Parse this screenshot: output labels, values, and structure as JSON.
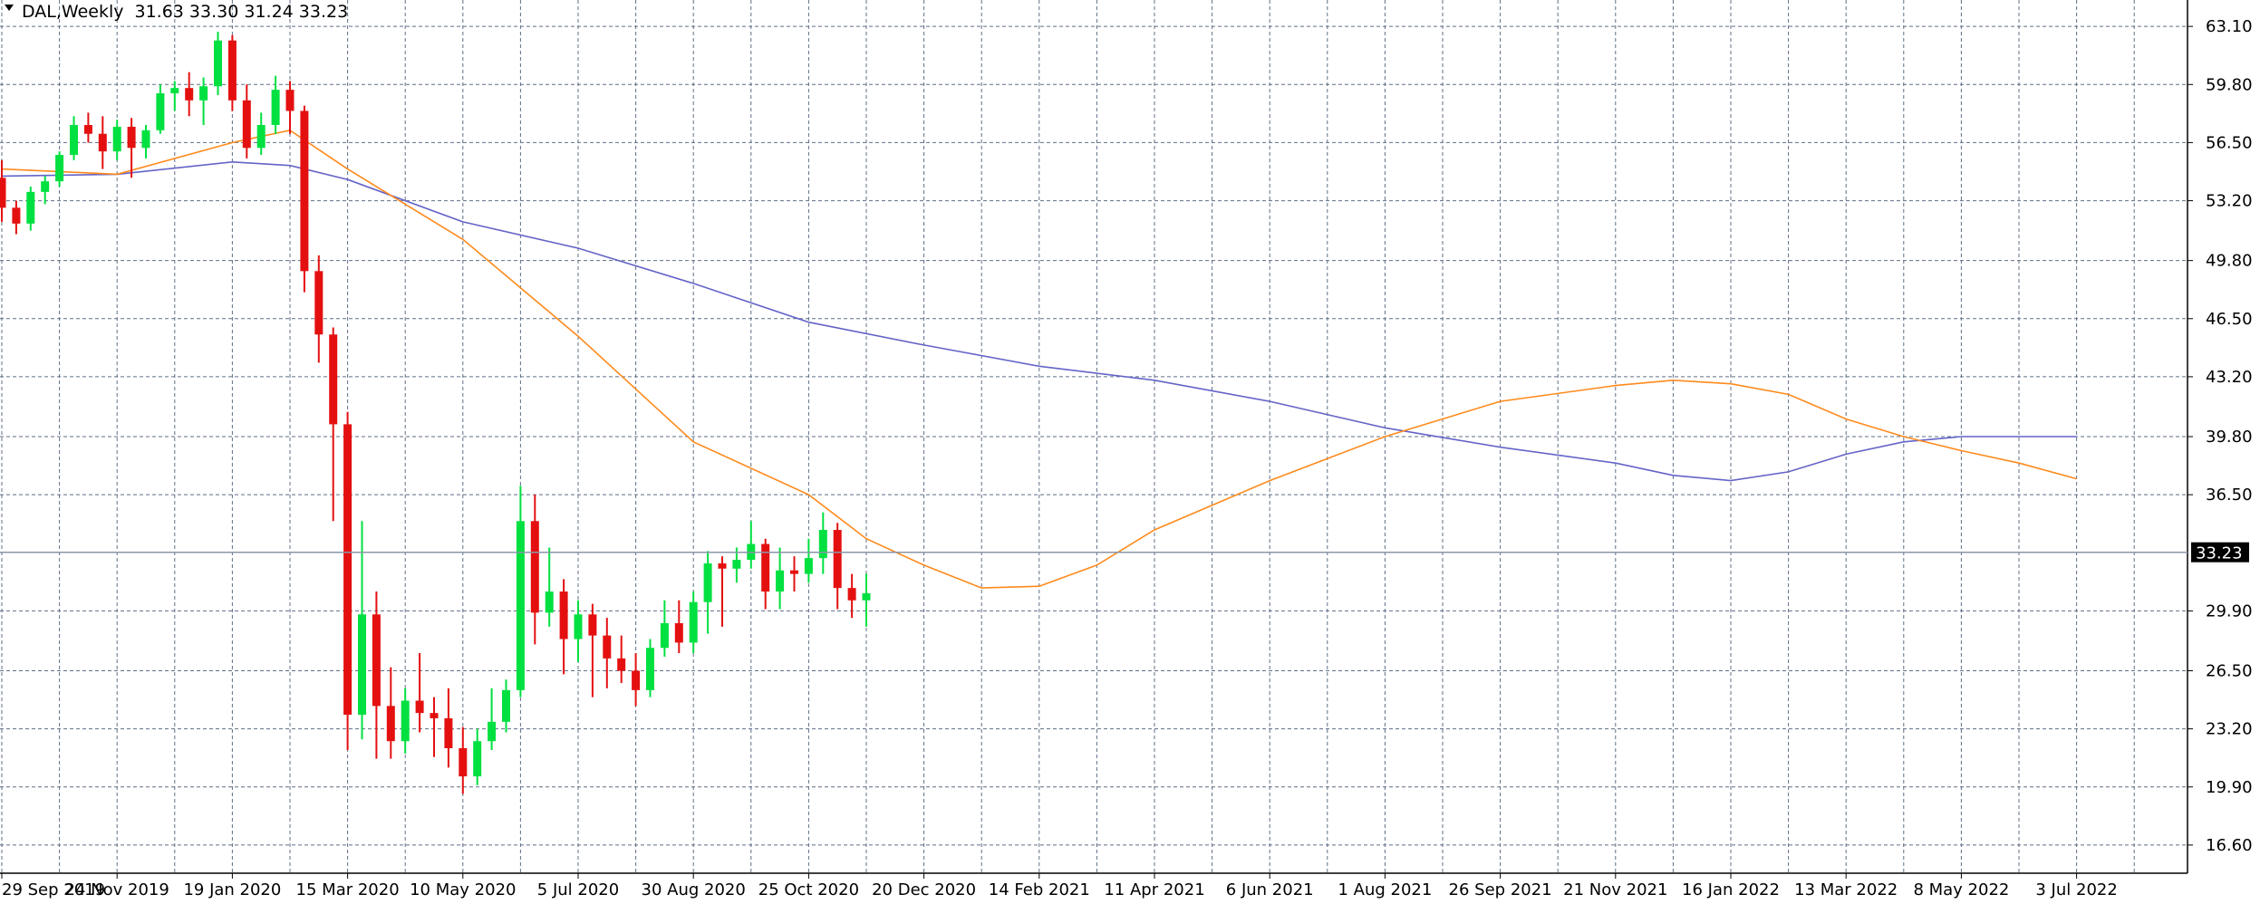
{
  "header": {
    "symbol_label": "DAL,Weekly",
    "ohlc": "31.63 33.30 31.24 33.23"
  },
  "colors": {
    "grid": "#5f6f86",
    "bull": "#00e040",
    "bear": "#e41010",
    "ma_fast": "#ff8a1c",
    "ma_slow": "#6464c8",
    "axis": "#000000",
    "price_line": "#8a96a8",
    "price_tag_bg": "#000000"
  },
  "chart_data": {
    "type": "candlestick",
    "ylim": [
      15.0,
      64.6
    ],
    "y_ticks": [
      "63.10",
      "59.80",
      "56.50",
      "53.20",
      "49.80",
      "46.50",
      "43.20",
      "39.80",
      "36.50",
      "33.23",
      "29.90",
      "26.50",
      "23.20",
      "19.90",
      "16.60"
    ],
    "y_tick_values": [
      63.1,
      59.8,
      56.5,
      53.2,
      49.8,
      46.5,
      43.2,
      39.8,
      36.5,
      33.23,
      29.9,
      26.5,
      23.2,
      19.9,
      16.6
    ],
    "x_tick_labels": [
      "29 Sep 2019",
      "24 Nov 2019",
      "19 Jan 2020",
      "15 Mar 2020",
      "10 May 2020",
      "5 Jul 2020",
      "30 Aug 2020",
      "25 Oct 2020",
      "20 Dec 2020",
      "14 Feb 2021",
      "11 Apr 2021",
      "6 Jun 2021",
      "1 Aug 2021",
      "26 Sep 2021",
      "21 Nov 2021",
      "16 Jan 2022",
      "13 Mar 2022",
      "8 May 2022",
      "3 Jul 2022"
    ],
    "x_tick_index": [
      0,
      8,
      16,
      24,
      32,
      40,
      48,
      56,
      64,
      72,
      80,
      88,
      96,
      104,
      112,
      120,
      128,
      136,
      144
    ],
    "current_price": "33.23",
    "current_price_value": 33.23,
    "candles": [
      [
        54.5,
        55.5,
        52.0,
        52.8
      ],
      [
        52.8,
        53.2,
        51.3,
        51.9
      ],
      [
        51.9,
        54.0,
        51.5,
        53.7
      ],
      [
        53.7,
        54.6,
        53.0,
        54.3
      ],
      [
        54.3,
        56.0,
        54.0,
        55.8
      ],
      [
        55.8,
        58.0,
        55.5,
        57.5
      ],
      [
        57.5,
        58.2,
        56.5,
        57.0
      ],
      [
        57.0,
        58.0,
        55.0,
        56.0
      ],
      [
        56.0,
        57.8,
        55.5,
        57.4
      ],
      [
        57.4,
        57.9,
        54.5,
        56.2
      ],
      [
        56.2,
        57.5,
        55.6,
        57.2
      ],
      [
        57.2,
        59.8,
        57.0,
        59.3
      ],
      [
        59.3,
        60.0,
        58.3,
        59.6
      ],
      [
        59.6,
        60.5,
        58.0,
        58.9
      ],
      [
        58.9,
        60.2,
        57.5,
        59.7
      ],
      [
        59.7,
        62.8,
        59.2,
        62.3
      ],
      [
        62.3,
        62.6,
        58.3,
        58.9
      ],
      [
        58.9,
        59.8,
        55.6,
        56.2
      ],
      [
        56.2,
        58.2,
        55.8,
        57.5
      ],
      [
        57.5,
        60.3,
        57.0,
        59.5
      ],
      [
        59.5,
        60.0,
        57.0,
        58.3
      ],
      [
        58.3,
        58.6,
        48.0,
        49.2
      ],
      [
        49.2,
        50.1,
        44.0,
        45.6
      ],
      [
        45.6,
        46.0,
        35.0,
        40.5
      ],
      [
        40.5,
        41.2,
        22.0,
        24.0
      ],
      [
        24.0,
        35.0,
        22.6,
        29.7
      ],
      [
        29.7,
        31.0,
        21.5,
        24.5
      ],
      [
        24.5,
        26.7,
        21.5,
        22.5
      ],
      [
        22.5,
        25.5,
        21.8,
        24.8
      ],
      [
        24.8,
        27.5,
        23.0,
        24.1
      ],
      [
        24.1,
        25.0,
        21.6,
        23.8
      ],
      [
        23.8,
        25.5,
        21.0,
        22.1
      ],
      [
        22.1,
        23.3,
        19.5,
        20.5
      ],
      [
        20.5,
        23.2,
        20.0,
        22.5
      ],
      [
        22.5,
        25.5,
        22.0,
        23.6
      ],
      [
        23.6,
        26.0,
        23.0,
        25.4
      ],
      [
        25.4,
        37.0,
        25.0,
        35.0
      ],
      [
        35.0,
        36.5,
        28.0,
        29.8
      ],
      [
        29.8,
        33.5,
        29.0,
        31.0
      ],
      [
        31.0,
        31.7,
        26.3,
        28.3
      ],
      [
        28.3,
        30.5,
        27.0,
        29.7
      ],
      [
        29.7,
        30.3,
        25.0,
        28.5
      ],
      [
        28.5,
        29.5,
        25.5,
        27.2
      ],
      [
        27.2,
        28.5,
        25.8,
        26.5
      ],
      [
        26.5,
        27.5,
        24.5,
        25.4
      ],
      [
        25.4,
        28.3,
        25.0,
        27.8
      ],
      [
        27.8,
        30.5,
        27.3,
        29.2
      ],
      [
        29.2,
        30.5,
        27.5,
        28.1
      ],
      [
        28.1,
        31.0,
        27.5,
        30.4
      ],
      [
        30.4,
        33.3,
        28.6,
        32.6
      ],
      [
        32.6,
        33.0,
        29.0,
        32.3
      ],
      [
        32.3,
        33.5,
        31.5,
        32.8
      ],
      [
        32.8,
        35.0,
        32.3,
        33.7
      ],
      [
        33.7,
        34.0,
        30.0,
        31.0
      ],
      [
        31.0,
        33.5,
        30.0,
        32.2
      ],
      [
        32.2,
        33.0,
        31.0,
        32.0
      ],
      [
        32.0,
        34.0,
        31.5,
        32.9
      ],
      [
        32.9,
        35.5,
        32.0,
        34.5
      ],
      [
        34.5,
        34.9,
        30.0,
        31.2
      ],
      [
        31.2,
        32.0,
        29.5,
        30.5
      ],
      [
        30.5,
        32.0,
        29.0,
        30.9
      ]
    ],
    "ma_fast_points": [
      [
        0,
        55.0
      ],
      [
        8,
        54.7
      ],
      [
        16,
        56.5
      ],
      [
        20,
        57.2
      ],
      [
        24,
        55.0
      ],
      [
        32,
        51.0
      ],
      [
        40,
        45.5
      ],
      [
        48,
        39.5
      ],
      [
        56,
        36.5
      ],
      [
        60,
        34.0
      ],
      [
        64,
        32.5
      ],
      [
        68,
        31.2
      ],
      [
        72,
        31.3
      ],
      [
        76,
        32.5
      ],
      [
        80,
        34.5
      ],
      [
        88,
        37.3
      ],
      [
        96,
        39.8
      ],
      [
        104,
        41.8
      ],
      [
        112,
        42.7
      ],
      [
        116,
        43.0
      ],
      [
        120,
        42.8
      ],
      [
        124,
        42.2
      ],
      [
        128,
        40.8
      ],
      [
        132,
        39.8
      ],
      [
        136,
        39.0
      ],
      [
        140,
        38.3
      ],
      [
        144,
        37.4
      ]
    ],
    "ma_slow_points": [
      [
        0,
        54.6
      ],
      [
        8,
        54.7
      ],
      [
        16,
        55.4
      ],
      [
        20,
        55.2
      ],
      [
        24,
        54.4
      ],
      [
        32,
        52.0
      ],
      [
        40,
        50.5
      ],
      [
        48,
        48.5
      ],
      [
        56,
        46.3
      ],
      [
        64,
        45.0
      ],
      [
        72,
        43.8
      ],
      [
        80,
        43.0
      ],
      [
        88,
        41.8
      ],
      [
        96,
        40.3
      ],
      [
        104,
        39.2
      ],
      [
        112,
        38.3
      ],
      [
        116,
        37.6
      ],
      [
        120,
        37.3
      ],
      [
        124,
        37.8
      ],
      [
        128,
        38.8
      ],
      [
        132,
        39.5
      ],
      [
        136,
        39.8
      ],
      [
        140,
        39.8
      ],
      [
        144,
        39.8
      ]
    ]
  }
}
